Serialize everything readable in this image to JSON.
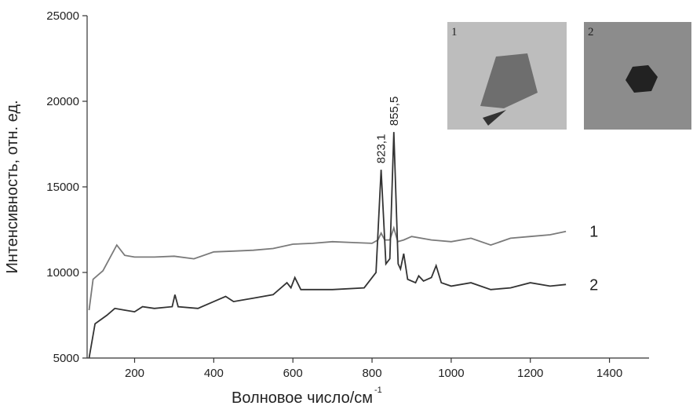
{
  "chart_data": {
    "type": "line",
    "x_label": "Волновое число/см",
    "x_label_superscript": "-1",
    "y_label": "Интенсивность, отн. ед.",
    "xlim": [
      80,
      1500
    ],
    "ylim": [
      5000,
      25000
    ],
    "xticks": [
      200,
      400,
      600,
      800,
      1000,
      1200,
      1400
    ],
    "yticks": [
      5000,
      10000,
      15000,
      20000,
      25000
    ],
    "series": [
      {
        "name": "1",
        "color": "#7a7a7a",
        "x": [
          85,
          95,
          120,
          155,
          175,
          200,
          250,
          300,
          350,
          400,
          450,
          500,
          550,
          600,
          650,
          700,
          750,
          800,
          815,
          823,
          832,
          845,
          855,
          865,
          880,
          900,
          950,
          1000,
          1050,
          1100,
          1150,
          1200,
          1250,
          1290
        ],
        "values": [
          7800,
          9600,
          10100,
          11600,
          11000,
          10900,
          10900,
          10950,
          10800,
          11200,
          11250,
          11300,
          11400,
          11650,
          11700,
          11800,
          11750,
          11700,
          11900,
          12300,
          11900,
          11900,
          12600,
          11800,
          11900,
          12100,
          11900,
          11800,
          12000,
          11600,
          12000,
          12100,
          12200,
          12400
        ]
      },
      {
        "name": "2",
        "color": "#333333",
        "x": [
          85,
          100,
          130,
          150,
          175,
          200,
          220,
          250,
          295,
          302,
          310,
          360,
          400,
          430,
          450,
          500,
          550,
          585,
          595,
          605,
          620,
          700,
          780,
          810,
          823,
          835,
          845,
          855,
          866,
          872,
          880,
          890,
          910,
          918,
          930,
          950,
          962,
          975,
          1000,
          1050,
          1100,
          1150,
          1200,
          1250,
          1290
        ],
        "values": [
          5000,
          7000,
          7500,
          7900,
          7800,
          7700,
          8000,
          7900,
          8000,
          8700,
          8000,
          7900,
          8300,
          8600,
          8300,
          8500,
          8700,
          9400,
          9100,
          9700,
          9000,
          9000,
          9100,
          10000,
          16000,
          10500,
          10800,
          18200,
          10500,
          10200,
          11100,
          9600,
          9400,
          9800,
          9500,
          9700,
          10400,
          9400,
          9200,
          9400,
          9000,
          9100,
          9400,
          9200,
          9300
        ]
      }
    ],
    "annotations": [
      {
        "text": "823,1",
        "x": 823,
        "y": 16000
      },
      {
        "text": "855,5",
        "x": 855,
        "y": 18200
      }
    ],
    "insets": [
      {
        "label": "1"
      },
      {
        "label": "2"
      }
    ]
  }
}
